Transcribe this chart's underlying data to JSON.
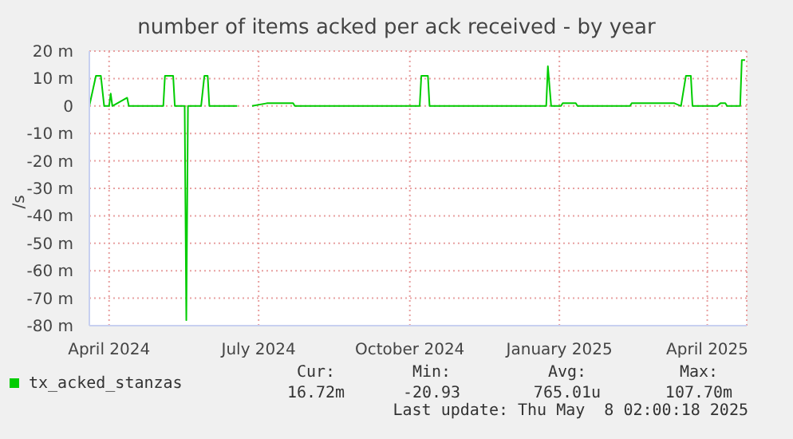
{
  "chart_data": {
    "type": "line",
    "title": "number of items acked per ack received - by year",
    "ylabel": "/s",
    "x": [
      "2024-04-03",
      "2024-04-07",
      "2024-04-10",
      "2024-04-12",
      "2024-04-15",
      "2024-04-16",
      "2024-04-17",
      "2024-04-26",
      "2024-04-27",
      "2024-05-18",
      "2024-05-19",
      "2024-05-24",
      "2024-05-25",
      "2024-05-31",
      "2024-06-01",
      "2024-06-02",
      "2024-06-10",
      "2024-06-12",
      "2024-06-14",
      "2024-06-15",
      "2024-07-02",
      "2024-07-10",
      "2024-07-11",
      "2024-07-20",
      "2024-08-05",
      "2024-08-06",
      "2024-10-21",
      "2024-10-22",
      "2024-10-26",
      "2024-10-27",
      "2025-01-06",
      "2025-01-07",
      "2025-01-09",
      "2025-01-15",
      "2025-01-16",
      "2025-01-24",
      "2025-01-25",
      "2025-02-26",
      "2025-02-27",
      "2025-03-25",
      "2025-03-29",
      "2025-04-01",
      "2025-04-04",
      "2025-04-05",
      "2025-04-20",
      "2025-04-22",
      "2025-04-25",
      "2025-04-26",
      "2025-05-04",
      "2025-05-05",
      "2025-05-07"
    ],
    "series": [
      {
        "name": "tx_acked_stanzas",
        "color": "#00cc00",
        "values": [
          0,
          11,
          11,
          0,
          0,
          4.5,
          0,
          3,
          0,
          0,
          11,
          11,
          0,
          0,
          -78,
          0,
          0,
          11,
          11,
          0,
          0,
          null,
          0,
          1,
          1,
          0,
          0,
          11,
          11,
          0,
          0,
          14.5,
          0,
          0,
          1,
          1,
          0,
          0,
          1,
          1,
          0,
          11,
          11,
          0,
          0,
          1,
          1,
          0,
          0,
          16.7,
          16.7
        ]
      }
    ],
    "xlim": [
      "2024-04-03",
      "2025-05-08"
    ],
    "xticks": [
      {
        "value": "2024-04-15",
        "label": "April 2024"
      },
      {
        "value": "2024-07-15",
        "label": "July 2024"
      },
      {
        "value": "2024-10-15",
        "label": "October 2024"
      },
      {
        "value": "2025-01-14",
        "label": "January 2025"
      },
      {
        "value": "2025-04-14",
        "label": "April 2025"
      }
    ],
    "ylim": [
      -80,
      20
    ],
    "yticks": [
      {
        "value": -80,
        "label": "-80 m"
      },
      {
        "value": -70,
        "label": "-70 m"
      },
      {
        "value": -60,
        "label": "-60 m"
      },
      {
        "value": -50,
        "label": "-50 m"
      },
      {
        "value": -40,
        "label": "-40 m"
      },
      {
        "value": -30,
        "label": "-30 m"
      },
      {
        "value": -20,
        "label": "-20 m"
      },
      {
        "value": -10,
        "label": "-10 m"
      },
      0,
      {
        "value": 10,
        "label": "10 m"
      },
      {
        "value": 20,
        "label": "20 m"
      }
    ],
    "grid": true,
    "legend": "bottom left",
    "marker": "none",
    "line_style": "solid",
    "annotations": [
      "Cur:",
      "Min:",
      "Avg:",
      "Max:",
      "16.72m",
      "-20.93",
      "765.01u",
      "107.70m",
      "Last update: Thu May  8 02:00:18 2025"
    ]
  }
}
